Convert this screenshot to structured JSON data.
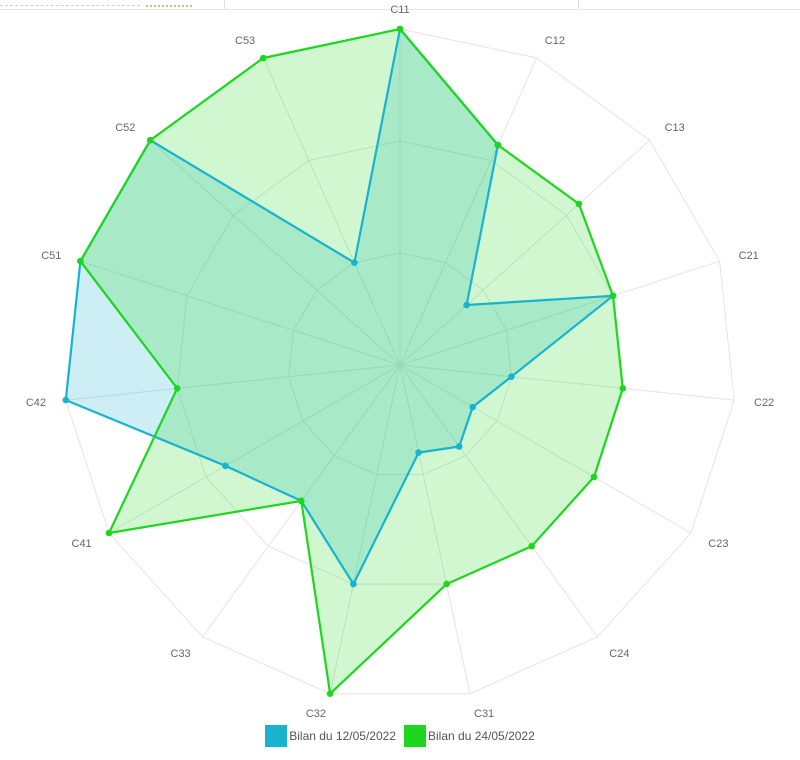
{
  "chart_data": {
    "type": "radar",
    "categories": [
      "C11",
      "C12",
      "C13",
      "C21",
      "C22",
      "C23",
      "C24",
      "C31",
      "C32",
      "C33",
      "C41",
      "C42",
      "C51",
      "C52",
      "C53"
    ],
    "rmax": 3,
    "grid_levels": 3,
    "grid": true,
    "legend_position": "bottom-center",
    "series": [
      {
        "name": "Bilan du 12/05/2022",
        "color": "#17b3cf",
        "fill": "rgba(23,179,207,0.22)",
        "values": [
          3,
          2.15,
          0.8,
          2,
          1,
          0.75,
          0.9,
          0.8,
          2,
          1.5,
          1.8,
          3,
          3,
          3,
          1
        ]
      },
      {
        "name": "Bilan du 24/05/2022",
        "color": "#1dd71d",
        "fill": "rgba(40,220,40,0.22)",
        "values": [
          3,
          2.15,
          2.15,
          2,
          2,
          2,
          2,
          2,
          3,
          1.5,
          3,
          2,
          3,
          3,
          3
        ]
      }
    ]
  }
}
